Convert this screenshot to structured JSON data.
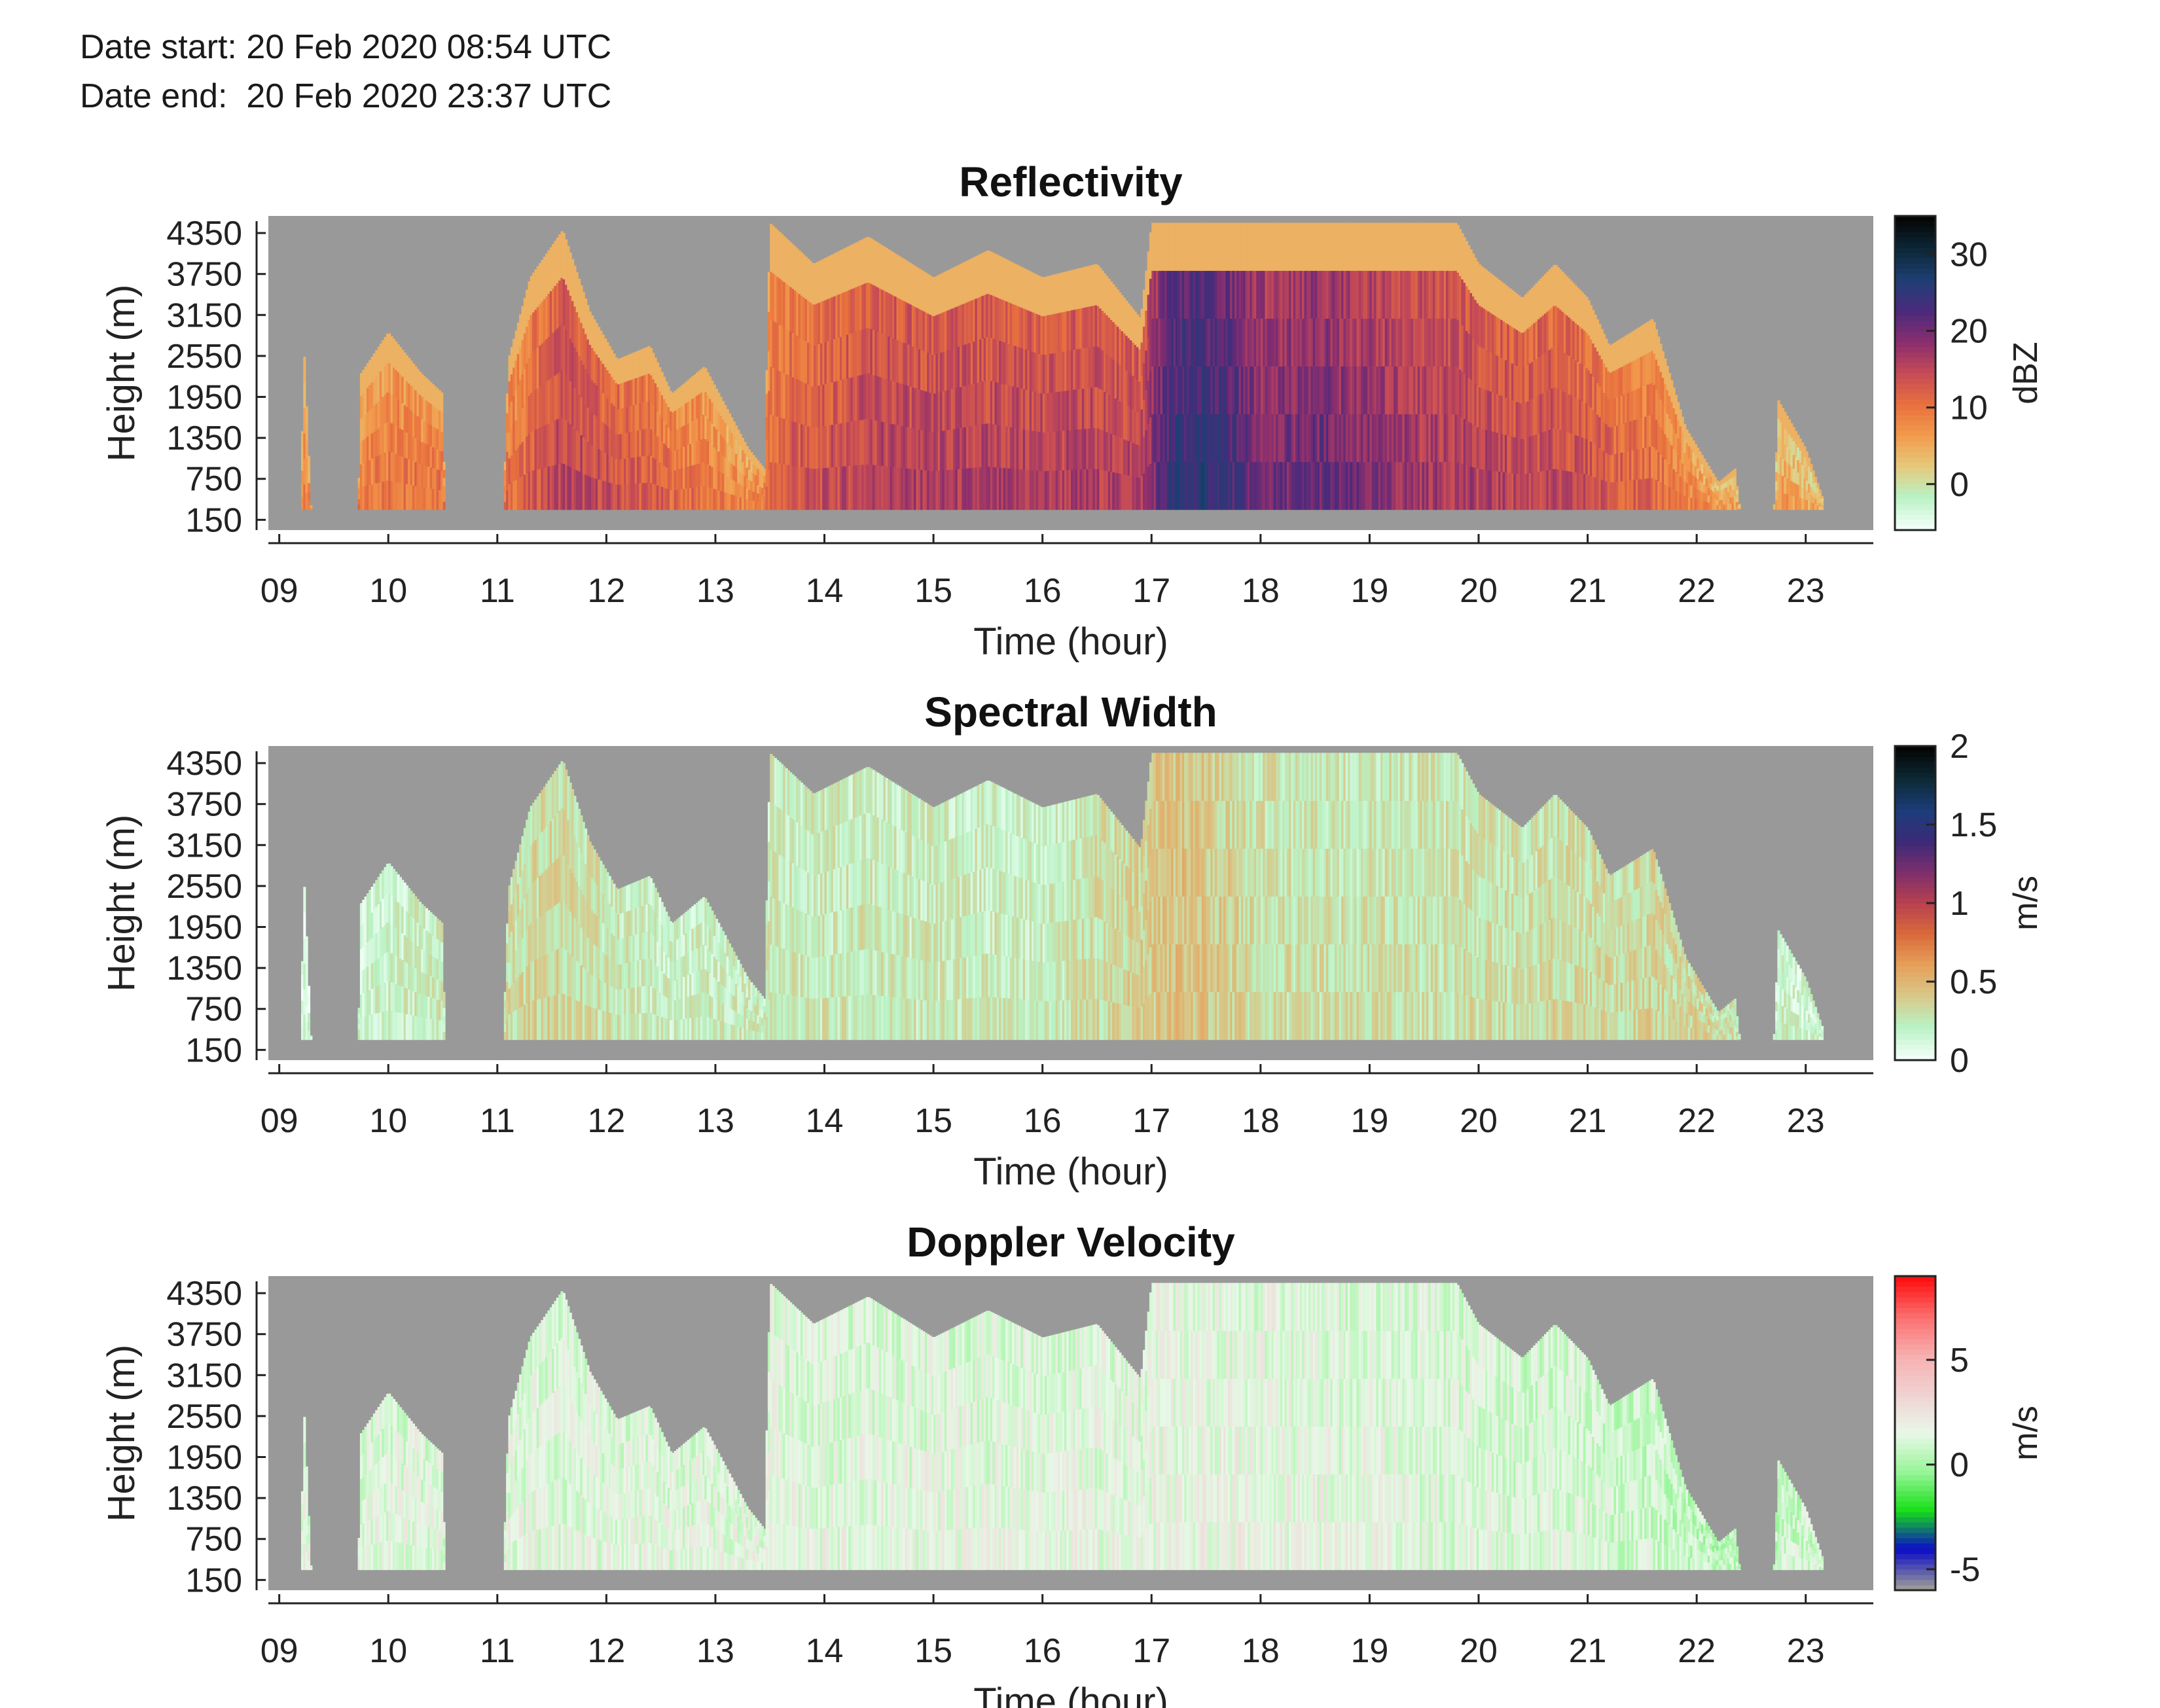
{
  "header": {
    "date_start": "Date start: 20 Feb 2020 08:54 UTC",
    "date_end": "Date end:  20 Feb 2020 23:37 UTC"
  },
  "colors": {
    "no_data": "#999999",
    "reflectivity_scale": [
      "#f2fff8",
      "#b9f2c4",
      "#e6c87a",
      "#f29a4c",
      "#e8703e",
      "#c54a56",
      "#8a2e6e",
      "#4b2a7c",
      "#1f3f75",
      "#0c2838",
      "#050505"
    ],
    "spectral_width_scale": [
      "#f2fff8",
      "#b9f2c4",
      "#d8c889",
      "#e6a05a",
      "#d96a3a",
      "#b8404f",
      "#7d2f6c",
      "#3b2a78",
      "#1c3d7a",
      "#0d2a36",
      "#050505"
    ],
    "velocity_scale": [
      "#999999",
      "#0b0bc8",
      "#16e016",
      "#98f598",
      "#e8f8e8",
      "#f0d2d2",
      "#f7b0b0",
      "#fb7070",
      "#ff1010"
    ]
  },
  "chart_data": [
    {
      "type": "heatmap",
      "title": "Reflectivity",
      "xlabel": "Time (hour)",
      "ylabel": "Height (m)",
      "x_ticks": [
        "09",
        "10",
        "11",
        "12",
        "13",
        "14",
        "15",
        "16",
        "17",
        "18",
        "19",
        "20",
        "21",
        "22",
        "23"
      ],
      "y_ticks": [
        "150",
        "750",
        "1350",
        "1950",
        "2550",
        "3150",
        "3750",
        "4350"
      ],
      "xlim": [
        8.9,
        23.62
      ],
      "ylim": [
        0,
        4600
      ],
      "colorbar": {
        "label": "dBZ",
        "ticks": [
          "0",
          "10",
          "20",
          "30"
        ],
        "tick_values": [
          0,
          10,
          20,
          30
        ],
        "range": [
          -6,
          35
        ]
      },
      "echo_base_m": 300,
      "echo_top_m": [
        [
          9.2,
          0
        ],
        [
          9.22,
          2900
        ],
        [
          9.3,
          0
        ],
        [
          9.72,
          0
        ],
        [
          9.75,
          2300
        ],
        [
          10.0,
          2900
        ],
        [
          10.3,
          2300
        ],
        [
          10.5,
          2000
        ],
        [
          10.52,
          0
        ],
        [
          11.05,
          0
        ],
        [
          11.1,
          2500
        ],
        [
          11.3,
          3700
        ],
        [
          11.6,
          4400
        ],
        [
          11.85,
          3200
        ],
        [
          12.1,
          2500
        ],
        [
          12.4,
          2700
        ],
        [
          12.6,
          2000
        ],
        [
          12.9,
          2400
        ],
        [
          13.1,
          1800
        ],
        [
          13.3,
          1200
        ],
        [
          13.45,
          900
        ],
        [
          13.5,
          4500
        ],
        [
          13.9,
          3900
        ],
        [
          14.4,
          4300
        ],
        [
          15.0,
          3700
        ],
        [
          15.5,
          4100
        ],
        [
          16.0,
          3700
        ],
        [
          16.5,
          3900
        ],
        [
          16.9,
          3100
        ],
        [
          17.0,
          4500
        ],
        [
          18.0,
          4500
        ],
        [
          19.0,
          4500
        ],
        [
          19.8,
          4500
        ],
        [
          20.0,
          3900
        ],
        [
          20.4,
          3400
        ],
        [
          20.7,
          3900
        ],
        [
          21.0,
          3400
        ],
        [
          21.2,
          2700
        ],
        [
          21.6,
          3100
        ],
        [
          21.9,
          1500
        ],
        [
          22.2,
          700
        ],
        [
          22.35,
          900
        ],
        [
          22.42,
          0
        ],
        [
          22.7,
          0
        ],
        [
          22.75,
          1900
        ],
        [
          23.0,
          1200
        ],
        [
          23.15,
          500
        ],
        [
          23.2,
          0
        ],
        [
          23.6,
          0
        ]
      ],
      "mean_value": [
        [
          9.2,
          8
        ],
        [
          10.0,
          10
        ],
        [
          11.2,
          11
        ],
        [
          11.6,
          16
        ],
        [
          12.5,
          12
        ],
        [
          13.3,
          8
        ],
        [
          13.7,
          13
        ],
        [
          14.5,
          16
        ],
        [
          15.5,
          16
        ],
        [
          16.5,
          16
        ],
        [
          16.9,
          16
        ],
        [
          17.2,
          25
        ],
        [
          17.6,
          25
        ],
        [
          18.0,
          20
        ],
        [
          18.6,
          21
        ],
        [
          19.2,
          18
        ],
        [
          20.0,
          16
        ],
        [
          21.0,
          14
        ],
        [
          21.8,
          10
        ],
        [
          22.3,
          6
        ],
        [
          22.8,
          6
        ],
        [
          23.2,
          4
        ]
      ]
    },
    {
      "type": "heatmap",
      "title": "Spectral Width",
      "xlabel": "Time (hour)",
      "ylabel": "Height (m)",
      "x_ticks": [
        "09",
        "10",
        "11",
        "12",
        "13",
        "14",
        "15",
        "16",
        "17",
        "18",
        "19",
        "20",
        "21",
        "22",
        "23"
      ],
      "y_ticks": [
        "150",
        "750",
        "1350",
        "1950",
        "2550",
        "3150",
        "3750",
        "4350"
      ],
      "xlim": [
        8.9,
        23.62
      ],
      "ylim": [
        0,
        4600
      ],
      "colorbar": {
        "label": "m/s",
        "ticks": [
          "0",
          "0.5",
          "1",
          "1.5",
          "2"
        ],
        "tick_values": [
          0,
          0.5,
          1,
          1.5,
          2
        ],
        "range": [
          0,
          2
        ]
      },
      "echo_base_m": 300,
      "echo_top_m": [
        [
          9.2,
          0
        ],
        [
          9.22,
          2900
        ],
        [
          9.3,
          0
        ],
        [
          9.72,
          0
        ],
        [
          9.75,
          2300
        ],
        [
          10.0,
          2900
        ],
        [
          10.3,
          2300
        ],
        [
          10.5,
          2000
        ],
        [
          10.52,
          0
        ],
        [
          11.05,
          0
        ],
        [
          11.1,
          2500
        ],
        [
          11.3,
          3700
        ],
        [
          11.6,
          4400
        ],
        [
          11.85,
          3200
        ],
        [
          12.1,
          2500
        ],
        [
          12.4,
          2700
        ],
        [
          12.6,
          2000
        ],
        [
          12.9,
          2400
        ],
        [
          13.1,
          1800
        ],
        [
          13.3,
          1200
        ],
        [
          13.45,
          900
        ],
        [
          13.5,
          4500
        ],
        [
          13.9,
          3900
        ],
        [
          14.4,
          4300
        ],
        [
          15.0,
          3700
        ],
        [
          15.5,
          4100
        ],
        [
          16.0,
          3700
        ],
        [
          16.5,
          3900
        ],
        [
          16.9,
          3100
        ],
        [
          17.0,
          4500
        ],
        [
          18.0,
          4500
        ],
        [
          19.0,
          4500
        ],
        [
          19.8,
          4500
        ],
        [
          20.0,
          3900
        ],
        [
          20.4,
          3400
        ],
        [
          20.7,
          3900
        ],
        [
          21.0,
          3400
        ],
        [
          21.2,
          2700
        ],
        [
          21.6,
          3100
        ],
        [
          21.9,
          1500
        ],
        [
          22.2,
          700
        ],
        [
          22.35,
          900
        ],
        [
          22.42,
          0
        ],
        [
          22.7,
          0
        ],
        [
          22.75,
          1900
        ],
        [
          23.0,
          1200
        ],
        [
          23.15,
          500
        ],
        [
          23.2,
          0
        ],
        [
          23.6,
          0
        ]
      ],
      "mean_value": [
        [
          9.2,
          0.1
        ],
        [
          11.5,
          0.35
        ],
        [
          12.5,
          0.2
        ],
        [
          14.0,
          0.25
        ],
        [
          16.0,
          0.22
        ],
        [
          17.3,
          0.45
        ],
        [
          18.0,
          0.3
        ],
        [
          19.0,
          0.28
        ],
        [
          20.5,
          0.3
        ],
        [
          22.0,
          0.35
        ],
        [
          23.0,
          0.15
        ]
      ]
    },
    {
      "type": "heatmap",
      "title": "Doppler Velocity",
      "xlabel": "Time (hour)",
      "ylabel": "Height (m)",
      "x_ticks": [
        "09",
        "10",
        "11",
        "12",
        "13",
        "14",
        "15",
        "16",
        "17",
        "18",
        "19",
        "20",
        "21",
        "22",
        "23"
      ],
      "y_ticks": [
        "150",
        "750",
        "1350",
        "1950",
        "2550",
        "3150",
        "3750",
        "4350"
      ],
      "xlim": [
        8.9,
        23.62
      ],
      "ylim": [
        0,
        4600
      ],
      "colorbar": {
        "label": "m/s",
        "ticks": [
          "-5",
          "0",
          "5"
        ],
        "tick_values": [
          -5,
          0,
          5
        ],
        "range": [
          -6,
          9
        ]
      },
      "echo_base_m": 300,
      "echo_top_m": [
        [
          9.2,
          0
        ],
        [
          9.22,
          2900
        ],
        [
          9.3,
          0
        ],
        [
          9.72,
          0
        ],
        [
          9.75,
          2300
        ],
        [
          10.0,
          2900
        ],
        [
          10.3,
          2300
        ],
        [
          10.5,
          2000
        ],
        [
          10.52,
          0
        ],
        [
          11.05,
          0
        ],
        [
          11.1,
          2500
        ],
        [
          11.3,
          3700
        ],
        [
          11.6,
          4400
        ],
        [
          11.85,
          3200
        ],
        [
          12.1,
          2500
        ],
        [
          12.4,
          2700
        ],
        [
          12.6,
          2000
        ],
        [
          12.9,
          2400
        ],
        [
          13.1,
          1800
        ],
        [
          13.3,
          1200
        ],
        [
          13.45,
          900
        ],
        [
          13.5,
          4500
        ],
        [
          13.9,
          3900
        ],
        [
          14.4,
          4300
        ],
        [
          15.0,
          3700
        ],
        [
          15.5,
          4100
        ],
        [
          16.0,
          3700
        ],
        [
          16.5,
          3900
        ],
        [
          16.9,
          3100
        ],
        [
          17.0,
          4500
        ],
        [
          18.0,
          4500
        ],
        [
          19.0,
          4500
        ],
        [
          19.8,
          4500
        ],
        [
          20.0,
          3900
        ],
        [
          20.4,
          3400
        ],
        [
          20.7,
          3900
        ],
        [
          21.0,
          3400
        ],
        [
          21.2,
          2700
        ],
        [
          21.6,
          3100
        ],
        [
          21.9,
          1500
        ],
        [
          22.2,
          700
        ],
        [
          22.35,
          900
        ],
        [
          22.42,
          0
        ],
        [
          22.7,
          0
        ],
        [
          22.75,
          1900
        ],
        [
          23.0,
          1200
        ],
        [
          23.15,
          500
        ],
        [
          23.2,
          0
        ],
        [
          23.6,
          0
        ]
      ],
      "mean_value": [
        [
          9.2,
          1.5
        ],
        [
          12.0,
          1.5
        ],
        [
          15.0,
          1.5
        ],
        [
          18.0,
          1.7
        ],
        [
          21.0,
          1.2
        ],
        [
          22.2,
          0.6
        ],
        [
          23.0,
          1.0
        ]
      ]
    }
  ]
}
